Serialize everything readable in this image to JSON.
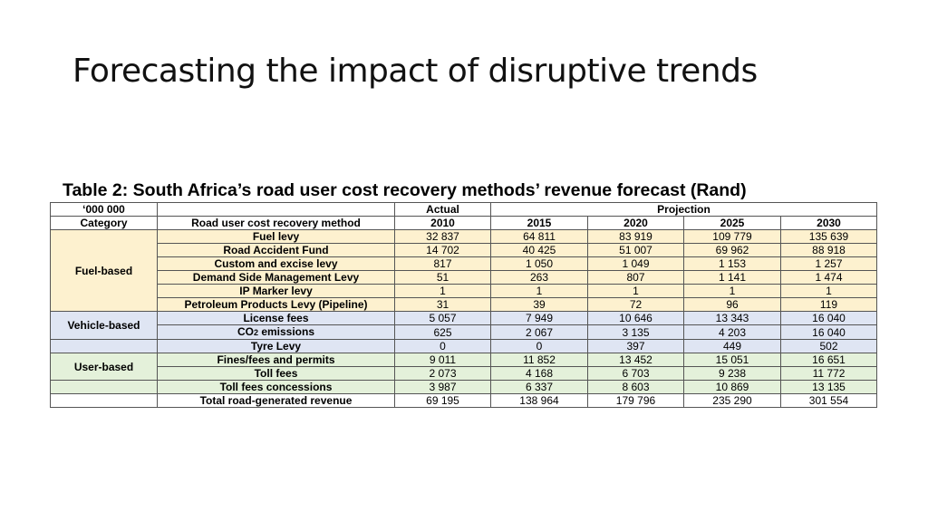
{
  "slide_title": "Forecasting the impact of disruptive trends",
  "table_caption": "Table 2: South Africa’s road user cost recovery methods’ revenue forecast (Rand)",
  "header": {
    "units": "‘000 000",
    "actual": "Actual",
    "projection": "Projection",
    "category": "Category",
    "method": "Road user cost recovery method",
    "years": [
      "2010",
      "2015",
      "2020",
      "2025",
      "2030"
    ]
  },
  "groups": {
    "fuel": "Fuel-based",
    "vehicle": "Vehicle-based",
    "user": "User-based"
  },
  "rows": [
    {
      "method": "Fuel levy",
      "values": [
        "32 837",
        "64 811",
        "83 919",
        "109 779",
        "135 639"
      ]
    },
    {
      "method": "Road Accident Fund",
      "values": [
        "14 702",
        "40 425",
        "51 007",
        "69 962",
        "88 918"
      ]
    },
    {
      "method": "Custom and excise levy",
      "values": [
        "817",
        "1 050",
        "1 049",
        "1 153",
        "1 257"
      ]
    },
    {
      "method": "Demand Side Management Levy",
      "values": [
        "51",
        "263",
        "807",
        "1 141",
        "1 474"
      ]
    },
    {
      "method": "IP Marker levy",
      "values": [
        "1",
        "1",
        "1",
        "1",
        "1"
      ]
    },
    {
      "method": "Petroleum Products Levy (Pipeline)",
      "values": [
        "31",
        "39",
        "72",
        "96",
        "119"
      ]
    },
    {
      "method": "License fees",
      "values": [
        "5 057",
        "7 949",
        "10 646",
        "13 343",
        "16 040"
      ]
    },
    {
      "method_prefix": "CO",
      "method_sub": "2",
      "method_suffix": " emissions",
      "values": [
        "625",
        "2 067",
        "3 135",
        "4 203",
        "16 040"
      ]
    },
    {
      "method": "Tyre Levy",
      "values": [
        "0",
        "0",
        "397",
        "449",
        "502"
      ]
    },
    {
      "method": "Fines/fees and permits",
      "values": [
        "9 011",
        "11 852",
        "13 452",
        "15 051",
        "16 651"
      ]
    },
    {
      "method": "Toll fees",
      "values": [
        "2 073",
        "4 168",
        "6 703",
        "9 238",
        "11 772"
      ]
    },
    {
      "method": "Toll fees concessions",
      "values": [
        "3 987",
        "6 337",
        "8 603",
        "10 869",
        "13 135"
      ]
    }
  ],
  "total": {
    "method": "Total road-generated revenue",
    "values": [
      "69 195",
      "138 964",
      "179 796",
      "235 290",
      "301 554"
    ]
  }
}
